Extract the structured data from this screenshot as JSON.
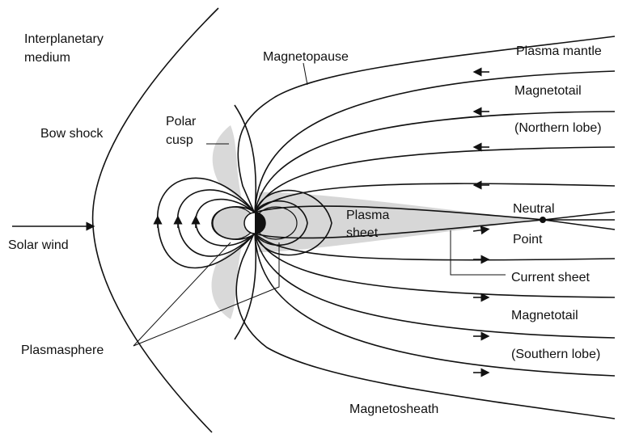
{
  "labels": [
    "Interplanetary",
    "medium",
    "Bow shock",
    "Solar wind",
    "Polar",
    "cusp",
    "Magnetopause",
    "Plasma mantle",
    "Magnetotail",
    "(Northern lobe)",
    "Neutral",
    "Point",
    "Plasma",
    "sheet",
    "Current sheet",
    "Magnetotail",
    "(Southern lobe)",
    "Plasmasphere",
    "Magnetosheath"
  ]
}
